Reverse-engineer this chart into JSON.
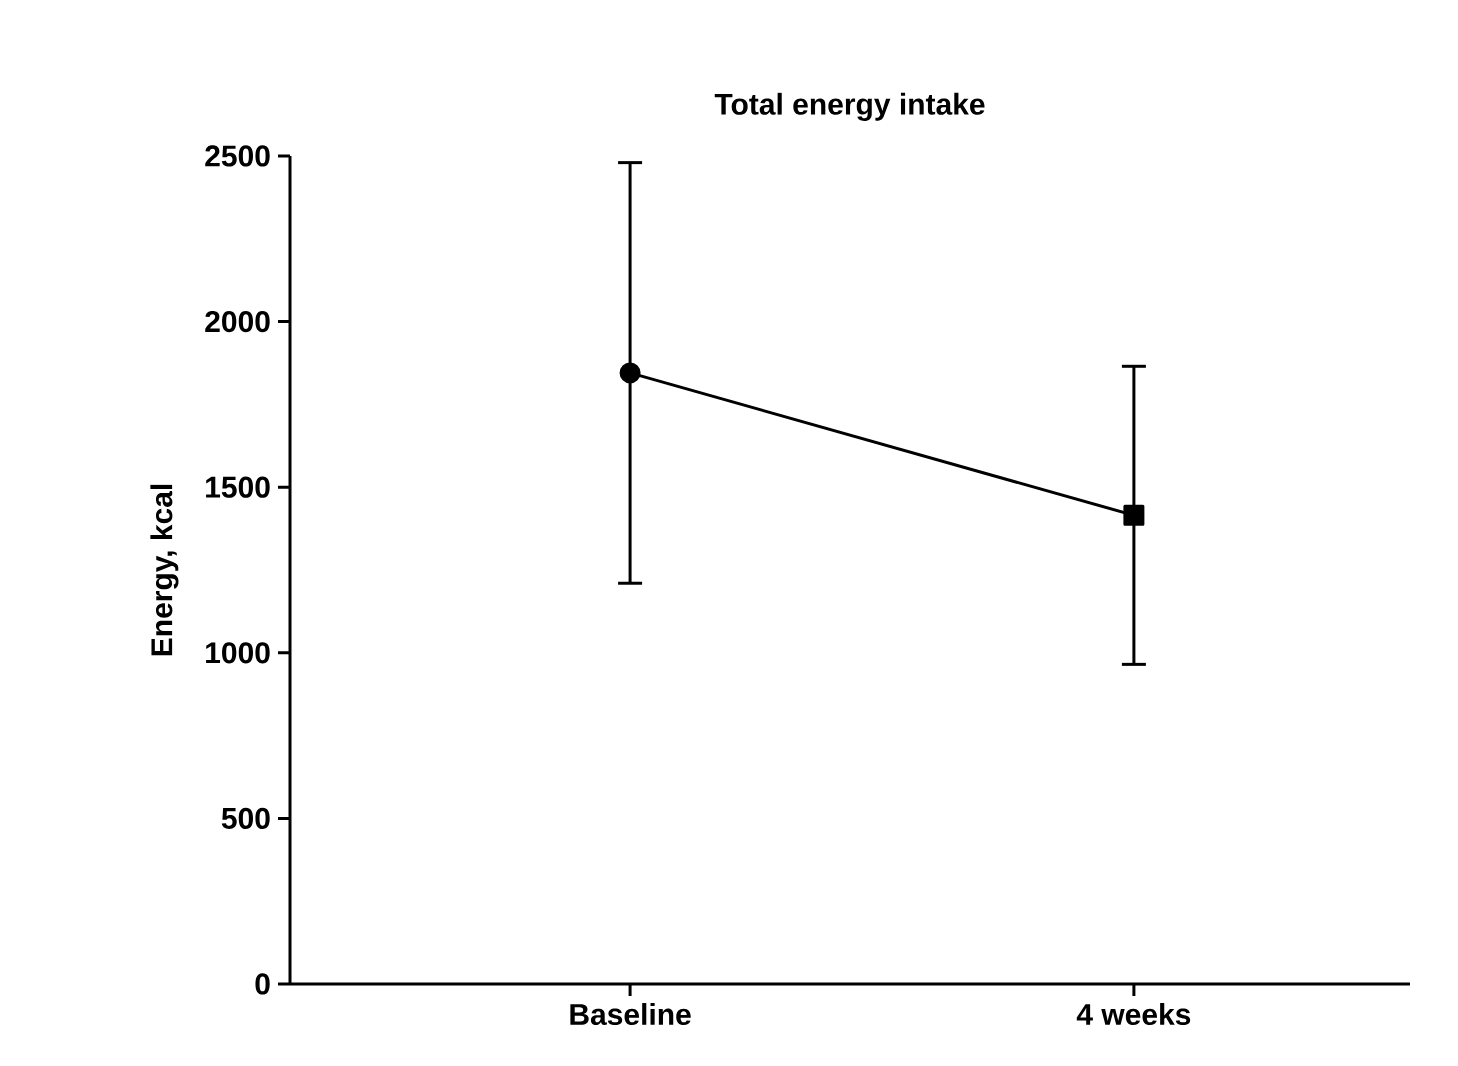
{
  "chart_data": {
    "type": "line",
    "title": "Total energy intake",
    "ylabel": "Energy, kcal",
    "categories": [
      "Baseline",
      "4 weeks"
    ],
    "series": [
      {
        "color": "#000000",
        "values": [
          1845,
          1415
        ],
        "marker": "none"
      },
      {
        "type": "scatter",
        "color": "#000000",
        "values": [
          1845,
          null
        ],
        "errors": [
          635,
          null
        ],
        "marker": "circle"
      },
      {
        "type": "scatter",
        "color": "#000000",
        "values": [
          null,
          1415
        ],
        "errors": [
          null,
          450
        ],
        "marker": "square"
      }
    ],
    "ylim": [
      0,
      2500
    ],
    "yticks": [
      0,
      500,
      1000,
      1500,
      2000,
      2500
    ],
    "grid": false
  }
}
